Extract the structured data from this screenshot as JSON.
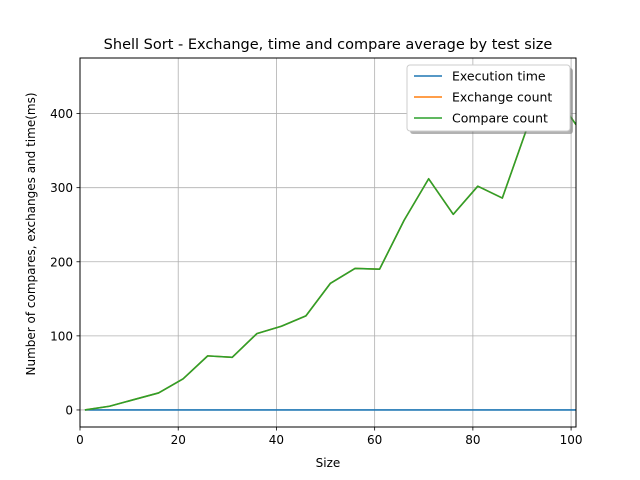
{
  "chart_data": {
    "type": "line",
    "title": "Shell Sort - Exchange, time and compare average by test size",
    "xlabel": "Size",
    "ylabel": "Number of compares, exchanges and time(ms)",
    "xlim": [
      0,
      101
    ],
    "ylim": [
      -23,
      475
    ],
    "xticks": [
      0,
      20,
      40,
      60,
      80,
      100
    ],
    "xtick_labels": [
      "0",
      "20",
      "40",
      "60",
      "80",
      "100"
    ],
    "yticks": [
      0,
      100,
      200,
      300,
      400
    ],
    "ytick_labels": [
      "0",
      "100",
      "200",
      "300",
      "400"
    ],
    "grid": true,
    "legend_position": "top-right",
    "x": [
      1,
      6,
      11,
      16,
      21,
      26,
      31,
      36,
      41,
      46,
      51,
      56,
      61,
      66,
      71,
      76,
      81,
      86,
      91,
      96,
      101
    ],
    "series": [
      {
        "name": "Execution time",
        "color": "#1f77b4",
        "values": [
          0,
          0,
          0,
          0,
          0,
          0,
          0,
          0,
          0,
          0,
          0,
          0,
          0,
          0,
          0,
          0,
          0,
          0,
          0,
          0,
          0
        ]
      },
      {
        "name": "Exchange count",
        "color": "#ff7f0e",
        "values": [
          0,
          5,
          14,
          23,
          42,
          73,
          71,
          103,
          113,
          127,
          171,
          191,
          190,
          256,
          312,
          264,
          302,
          286,
          380,
          433,
          385
        ]
      },
      {
        "name": "Compare count",
        "color": "#2ca02c",
        "values": [
          0,
          5,
          14,
          23,
          42,
          73,
          71,
          103,
          113,
          127,
          171,
          191,
          190,
          256,
          312,
          264,
          302,
          286,
          380,
          433,
          385
        ]
      }
    ]
  }
}
